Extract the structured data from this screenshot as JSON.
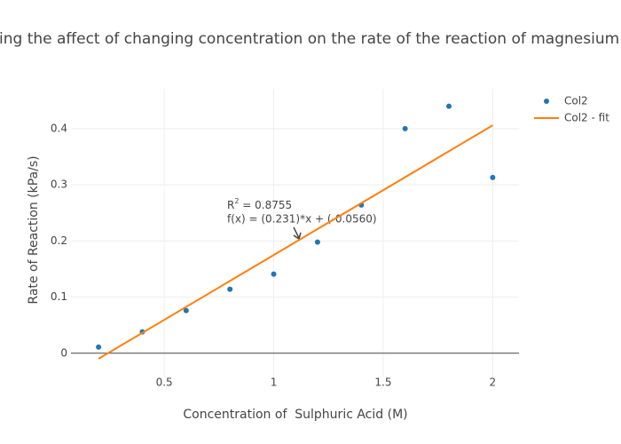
{
  "chart_data": {
    "type": "scatter",
    "title": "ing the affect of changing concentration on the rate of the reaction of magnesium and su",
    "x_label": "Concentration of  Sulphuric Acid (M)",
    "y_label": "Rate of Reaction (kPa/s)",
    "xlim": [
      0.074,
      2.12
    ],
    "ylim": [
      -0.043,
      0.471
    ],
    "xticks": [
      0.5,
      1,
      1.5,
      2
    ],
    "yticks": [
      0,
      0.1,
      0.2,
      0.3,
      0.4
    ],
    "grid": true,
    "legend": "right",
    "series": [
      {
        "name": "Col2",
        "color": "#1f77b4",
        "mode": "markers",
        "x": [
          0.2,
          0.4,
          0.6,
          0.8,
          1.0,
          1.2,
          1.4,
          1.6,
          1.8,
          2.0
        ],
        "values": [
          0.011,
          0.038,
          0.076,
          0.114,
          0.141,
          0.198,
          0.264,
          0.4,
          0.44,
          0.313
        ]
      },
      {
        "name": "Col2 - fit",
        "color": "#ff7f0e",
        "mode": "lines",
        "x": [
          0.2,
          2.0
        ],
        "values": [
          -0.0098,
          0.406
        ]
      }
    ],
    "annotation": {
      "r_label": "R",
      "r_sup": "2",
      "r_value": " = 0.8755",
      "fit": "f(x) = (0.231)*x + (-0.0560)"
    }
  }
}
